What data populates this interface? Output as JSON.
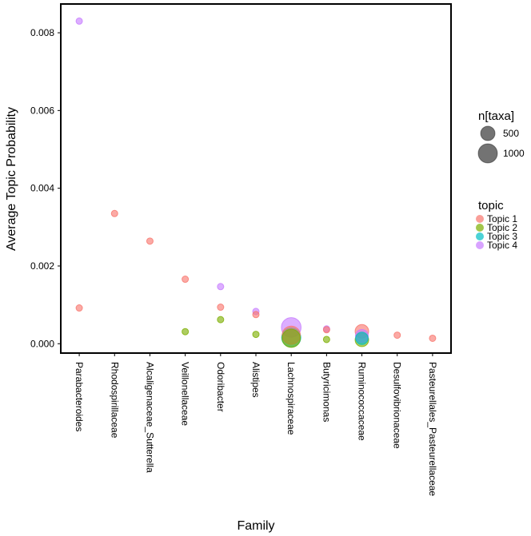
{
  "chart_data": {
    "type": "scatter",
    "title": "",
    "xlabel": "Family",
    "ylabel": "Average Topic Probability",
    "ylim": [
      -0.00022,
      0.00872
    ],
    "yticks": [
      0.0,
      0.002,
      0.004,
      0.006,
      0.008
    ],
    "ytick_labels": [
      "0.000",
      "0.002",
      "0.004",
      "0.006",
      "0.008"
    ],
    "categories": [
      "Parabacteroides",
      "Rhodospirillaceae",
      "Alcaligenaceae_Sutterella",
      "Veillonellaceae",
      "Odoribacter",
      "Alistipes",
      "Lachnospiraceae",
      "Butyricimonas",
      "Ruminococcaceae",
      "Desulfovibrionaceae",
      "Pasteurellales_Pasteurellaceae"
    ],
    "size_legend": {
      "title": "n[taxa]",
      "entries": [
        {
          "label": "500",
          "value": 500
        },
        {
          "label": "1000",
          "value": 1000
        }
      ]
    },
    "color_legend": {
      "title": "topic",
      "entries": [
        {
          "label": "Topic 1",
          "color": "#F8766D"
        },
        {
          "label": "Topic 2",
          "color": "#7CAE00"
        },
        {
          "label": "Topic 3",
          "color": "#00BFC4"
        },
        {
          "label": "Topic 4",
          "color": "#C77CFF"
        }
      ]
    },
    "points": [
      {
        "category": "Parabacteroides",
        "topic": "Topic 4",
        "y": 0.0083,
        "n": 40
      },
      {
        "category": "Parabacteroides",
        "topic": "Topic 1",
        "y": 0.00092,
        "n": 40
      },
      {
        "category": "Rhodospirillaceae",
        "topic": "Topic 1",
        "y": 0.00335,
        "n": 25
      },
      {
        "category": "Alcaligenaceae_Sutterella",
        "topic": "Topic 1",
        "y": 0.00264,
        "n": 35
      },
      {
        "category": "Veillonellaceae",
        "topic": "Topic 1",
        "y": 0.00166,
        "n": 40
      },
      {
        "category": "Veillonellaceae",
        "topic": "Topic 2",
        "y": 0.00031,
        "n": 40
      },
      {
        "category": "Odoribacter",
        "topic": "Topic 4",
        "y": 0.00147,
        "n": 20
      },
      {
        "category": "Odoribacter",
        "topic": "Topic 1",
        "y": 0.00094,
        "n": 20
      },
      {
        "category": "Odoribacter",
        "topic": "Topic 2",
        "y": 0.00062,
        "n": 20
      },
      {
        "category": "Alistipes",
        "topic": "Topic 4",
        "y": 0.00083,
        "n": 45
      },
      {
        "category": "Alistipes",
        "topic": "Topic 1",
        "y": 0.00075,
        "n": 35
      },
      {
        "category": "Alistipes",
        "topic": "Topic 2",
        "y": 0.00024,
        "n": 40
      },
      {
        "category": "Lachnospiraceae",
        "topic": "Topic 4",
        "y": 0.00042,
        "n": 1050
      },
      {
        "category": "Lachnospiraceae",
        "topic": "Topic 1",
        "y": 0.00022,
        "n": 900
      },
      {
        "category": "Lachnospiraceae",
        "topic": "Topic 3",
        "y": 0.00016,
        "n": 1000
      },
      {
        "category": "Lachnospiraceae",
        "topic": "Topic 2",
        "y": 0.00014,
        "n": 900
      },
      {
        "category": "Butyricimonas",
        "topic": "Topic 4",
        "y": 0.00038,
        "n": 40
      },
      {
        "category": "Butyricimonas",
        "topic": "Topic 1",
        "y": 0.00036,
        "n": 30
      },
      {
        "category": "Butyricimonas",
        "topic": "Topic 2",
        "y": 0.00011,
        "n": 40
      },
      {
        "category": "Ruminococcaceae",
        "topic": "Topic 1",
        "y": 0.00032,
        "n": 500
      },
      {
        "category": "Ruminococcaceae",
        "topic": "Topic 4",
        "y": 0.0002,
        "n": 450
      },
      {
        "category": "Ruminococcaceae",
        "topic": "Topic 3",
        "y": 0.00014,
        "n": 420
      },
      {
        "category": "Ruminococcaceae",
        "topic": "Topic 2",
        "y": 0.0001,
        "n": 500
      },
      {
        "category": "Desulfovibrionaceae",
        "topic": "Topic 1",
        "y": 0.00022,
        "n": 30
      },
      {
        "category": "Pasteurellales_Pasteurellaceae",
        "topic": "Topic 1",
        "y": 0.00014,
        "n": 30
      }
    ]
  }
}
